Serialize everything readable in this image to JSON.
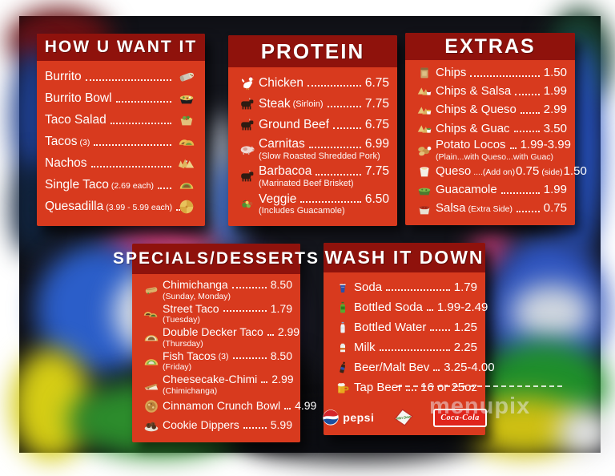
{
  "colors": {
    "panel_body": "#d83a1e",
    "panel_header": "#8f120c",
    "text": "#ffffff",
    "pepsi_red": "#d5232a",
    "pepsi_blue": "#1b4fa0",
    "coke_red": "#e0251c",
    "dew_green": "#2f7a1e"
  },
  "watermark": {
    "text": "menupix"
  },
  "panels": [
    {
      "id": "how-u-want-it",
      "title": "HOW U WANT IT",
      "icon_side": "right",
      "items": [
        {
          "icon": "burrito",
          "label": "Burrito"
        },
        {
          "icon": "burrito-bowl",
          "label": "Burrito Bowl"
        },
        {
          "icon": "taco-salad",
          "label": "Taco Salad"
        },
        {
          "icon": "tacos",
          "label": "Tacos",
          "note": "(3)"
        },
        {
          "icon": "nachos",
          "label": "Nachos"
        },
        {
          "icon": "taco",
          "label": "Single Taco",
          "note": "(2.69 each)"
        },
        {
          "icon": "quesadilla",
          "label": "Quesadilla",
          "note": "(3.99 - 5.99 each)"
        }
      ]
    },
    {
      "id": "protein",
      "title": "PROTEIN",
      "icon_side": "left",
      "items": [
        {
          "icon": "rooster",
          "label": "Chicken",
          "price": "6.75"
        },
        {
          "icon": "cow",
          "label": "Steak",
          "note": "(Sirloin)",
          "price": "7.75"
        },
        {
          "icon": "cow",
          "label": "Ground Beef",
          "price": "6.75"
        },
        {
          "icon": "pig",
          "label": "Carnitas",
          "price": "6.99",
          "sub": "(Slow Roasted Shredded Pork)"
        },
        {
          "icon": "cow",
          "label": "Barbacoa",
          "price": "7.75",
          "sub": "(Marinated Beef Brisket)"
        },
        {
          "icon": "veggie",
          "label": "Veggie",
          "price": "6.50",
          "sub": "(Includes Guacamole)"
        }
      ]
    },
    {
      "id": "extras",
      "title": "EXTRAS",
      "icon_side": "left",
      "items": [
        {
          "icon": "chips-bag",
          "label": "Chips",
          "price": "1.50"
        },
        {
          "icon": "chips-salsa",
          "label": "Chips & Salsa",
          "price": "1.99"
        },
        {
          "icon": "chips-queso",
          "label": "Chips & Queso",
          "price": "2.99"
        },
        {
          "icon": "chips-guac",
          "label": "Chips & Guac",
          "price": "3.50"
        },
        {
          "icon": "potato-locos",
          "label": "Potato Locos",
          "price": "1.99-3.99",
          "sub": "(Plain...with Queso...with Guac)"
        },
        {
          "icon": "queso-cup",
          "label": "Queso",
          "note": "....(Add on)",
          "mid_price": "0.75",
          "note2": "(side)",
          "price": "1.50",
          "no_leader": true
        },
        {
          "icon": "guacamole",
          "label": "Guacamole",
          "price": "1.99"
        },
        {
          "icon": "salsa-cup",
          "label": "Salsa",
          "note": "(Extra Side)",
          "price": "0.75"
        }
      ]
    },
    {
      "id": "specials-desserts",
      "title": "SPECIALS/DESSERTS",
      "icon_side": "left",
      "items": [
        {
          "icon": "chimichanga",
          "label": "Chimichanga",
          "price": "8.50",
          "sub": "(Sunday, Monday)"
        },
        {
          "icon": "street-taco",
          "label": "Street Taco",
          "price": "1.79",
          "sub": "(Tuesday)"
        },
        {
          "icon": "double-decker-taco",
          "label": "Double Decker Taco",
          "price": "2.99",
          "sub": "(Thursday)"
        },
        {
          "icon": "fish-taco",
          "label": "Fish Tacos",
          "note": "(3)",
          "price": "8.50",
          "sub": "(Friday)"
        },
        {
          "icon": "cheesecake-chimi",
          "label": "Cheesecake-Chimi",
          "price": "2.99",
          "sub": "(Chimichanga)"
        },
        {
          "icon": "cinnamon-crunch-bowl",
          "label": "Cinnamon Crunch Bowl",
          "price": "4.99"
        },
        {
          "icon": "cookie-dippers",
          "label": "Cookie Dippers",
          "price": "5.99"
        }
      ]
    },
    {
      "id": "wash-it-down",
      "title": "WASH IT DOWN",
      "icon_side": "left",
      "items": [
        {
          "icon": "soda-cup",
          "label": "Soda",
          "price": "1.79"
        },
        {
          "icon": "soda-bottle",
          "label": "Bottled Soda",
          "price": "1.99-2.49"
        },
        {
          "icon": "water-bottle",
          "label": "Bottled Water",
          "price": "1.25"
        },
        {
          "icon": "milk-carton",
          "label": "Milk",
          "price": "2.25"
        },
        {
          "icon": "beer-bottle",
          "label": "Beer/Malt Bev",
          "price": "3.25-4.00"
        },
        {
          "icon": "beer-mug",
          "label": "Tap Beer",
          "price": "16 or 25oz"
        }
      ],
      "logos": [
        {
          "icon": "pepsi-logo",
          "label": "pepsi"
        },
        {
          "icon": "mtn-dew-logo",
          "label": "Mtn Dew"
        },
        {
          "icon": "coca-cola-logo",
          "label": "Coca-Cola"
        }
      ]
    }
  ]
}
